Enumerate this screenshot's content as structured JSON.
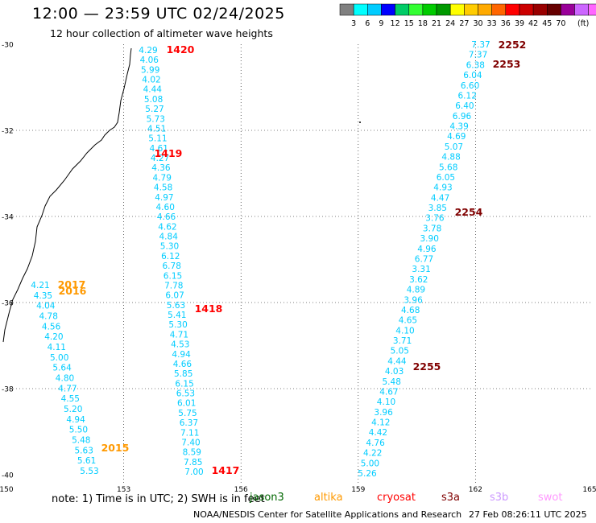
{
  "header": {
    "title": "12:00 — 23:59 UTC 02/24/2025",
    "subtitle": "12 hour collection of altimeter wave heights"
  },
  "color_scale": {
    "colors": [
      "#808080",
      "#00ffff",
      "#00ccff",
      "#0000ff",
      "#00cc66",
      "#33ff33",
      "#00cc00",
      "#009900",
      "#ffff00",
      "#ffcc00",
      "#ffaa00",
      "#ff6600",
      "#ff0000",
      "#cc0000",
      "#990000",
      "#660000",
      "#990099",
      "#cc66ff",
      "#ff66ff",
      "#000000"
    ],
    "labels": [
      "3",
      "6",
      "9",
      "12",
      "15",
      "18",
      "21",
      "24",
      "27",
      "30",
      "33",
      "36",
      "39",
      "42",
      "45",
      "70"
    ],
    "unit": "(ft)"
  },
  "map": {
    "lon_ticks": [
      "150",
      "153",
      "156",
      "159",
      "162",
      "165"
    ],
    "lat_ticks": [
      "-30",
      "-32",
      "-34",
      "-36",
      "-38",
      "-40"
    ],
    "track_color": "#00ccff"
  },
  "tracks": [
    {
      "pass": "1420",
      "pass_color": "#ff0000",
      "values": [
        "4.29",
        "4.06",
        "5.99",
        "4.02",
        "4.44",
        "5.08",
        "5.27",
        "5.73",
        "4.51",
        "5.11",
        "4.61",
        "4.27",
        "4.36",
        "4.79",
        "4.58",
        "4.97",
        "4.60",
        "4.66",
        "4.62",
        "4.84",
        "5.30",
        "6.12",
        "6.78",
        "6.15",
        "7.78",
        "6.07",
        "5.63",
        "5.41",
        "5.30",
        "4.71",
        "4.53",
        "4.94",
        "4.66",
        "5.85",
        "6.15",
        "6.53",
        "6.01",
        "5.75",
        "6.37",
        "7.11",
        "7.40",
        "8.59",
        "7.85",
        "7.00"
      ]
    },
    {
      "pass": "1419",
      "pass_color": "#ff0000"
    },
    {
      "pass": "1418",
      "pass_color": "#ff0000"
    },
    {
      "pass": "1417",
      "pass_color": "#ff0000"
    },
    {
      "pass": "2252",
      "pass_color": "#800000",
      "values": [
        "7.37",
        "7.37",
        "6.38",
        "6.04",
        "6.60",
        "6.12",
        "6.40",
        "6.96",
        "4.39",
        "4.69",
        "5.07",
        "4.88",
        "5.68",
        "6.05",
        "4.93",
        "4.47",
        "3.85",
        "3.76",
        "3.78",
        "3.90",
        "4.96",
        "6.77",
        "3.31",
        "3.62",
        "4.89",
        "3.96",
        "4.68",
        "4.65",
        "4.10",
        "3.71",
        "5.05",
        "4.44",
        "4.03",
        "5.48",
        "4.67",
        "4.10",
        "3.96",
        "4.12",
        "4.42",
        "4.76",
        "4.22",
        "5.00",
        "5.26"
      ]
    },
    {
      "pass": "2253",
      "pass_color": "#800000"
    },
    {
      "pass": "2254",
      "pass_color": "#800000"
    },
    {
      "pass": "2255",
      "pass_color": "#800000"
    },
    {
      "pass": "2017",
      "pass_color": "#ff9900",
      "values": [
        "4.21",
        "4.35",
        "4.04",
        "4.78",
        "4.56",
        "4.20",
        "4.11",
        "5.00",
        "5.64",
        "4.80",
        "4.77",
        "4.55",
        "5.20",
        "4.94",
        "5.50",
        "5.48",
        "5.63",
        "5.61",
        "5.53"
      ]
    },
    {
      "pass": "2016",
      "pass_color": "#ff9900"
    },
    {
      "pass": "2015",
      "pass_color": "#ff9900"
    }
  ],
  "footer": {
    "note": "note:  1) Time is in UTC;  2) SWH is in feet",
    "satellites": [
      {
        "name": "jason3",
        "color": "#006600"
      },
      {
        "name": "altika",
        "color": "#ff9900"
      },
      {
        "name": "cryosat",
        "color": "#ff0000"
      },
      {
        "name": "s3a",
        "color": "#800000"
      },
      {
        "name": "s3b",
        "color": "#cc99ff"
      },
      {
        "name": "swot",
        "color": "#ff99ff"
      }
    ],
    "credit": "NOAA/NESDIS Center for Satellite Applications and Research",
    "timestamp": "27 Feb 08:26:11 UTC 2025"
  }
}
